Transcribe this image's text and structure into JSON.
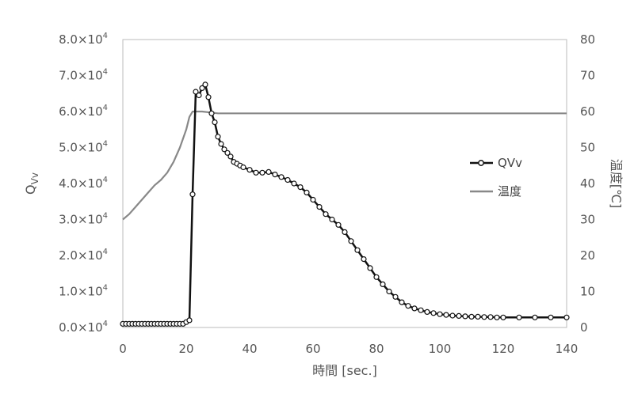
{
  "chart_data": {
    "type": "line",
    "xlabel": "時間 [sec.]",
    "ylabel_left": "Q",
    "ylabel_left_sub": "Vv",
    "ylabel_right": "温度[℃]",
    "xlim": [
      0,
      140
    ],
    "ylim_left": [
      0,
      80000
    ],
    "ylim_right": [
      0,
      80
    ],
    "grid": false,
    "legend_placement": "right",
    "x_ticks": [
      "0",
      "20",
      "40",
      "60",
      "80",
      "100",
      "120",
      "140"
    ],
    "y_left_ticks": [
      {
        "mantissa": "0.0×10",
        "exp": "4"
      },
      {
        "mantissa": "1.0×10",
        "exp": "4"
      },
      {
        "mantissa": "2.0×10",
        "exp": "4"
      },
      {
        "mantissa": "3.0×10",
        "exp": "4"
      },
      {
        "mantissa": "4.0×10",
        "exp": "4"
      },
      {
        "mantissa": "5.0×10",
        "exp": "4"
      },
      {
        "mantissa": "6.0×10",
        "exp": "4"
      },
      {
        "mantissa": "7.0×10",
        "exp": "4"
      },
      {
        "mantissa": "8.0×10",
        "exp": "4"
      }
    ],
    "y_right_ticks": [
      "0",
      "10",
      "20",
      "30",
      "40",
      "50",
      "60",
      "70",
      "80"
    ],
    "series": [
      {
        "name": "QVv",
        "axis": "left",
        "color": "#111111",
        "marker": "circle",
        "points": [
          [
            0,
            1000
          ],
          [
            1,
            1000
          ],
          [
            2,
            1000
          ],
          [
            3,
            1000
          ],
          [
            4,
            1000
          ],
          [
            5,
            1000
          ],
          [
            6,
            1000
          ],
          [
            7,
            1000
          ],
          [
            8,
            1000
          ],
          [
            9,
            1000
          ],
          [
            10,
            1000
          ],
          [
            11,
            1000
          ],
          [
            12,
            1000
          ],
          [
            13,
            1000
          ],
          [
            14,
            1000
          ],
          [
            15,
            1000
          ],
          [
            16,
            1000
          ],
          [
            17,
            1000
          ],
          [
            18,
            1000
          ],
          [
            19,
            1000
          ],
          [
            20,
            1500
          ],
          [
            21,
            2000
          ],
          [
            22,
            37000
          ],
          [
            23,
            65500
          ],
          [
            24,
            64500
          ],
          [
            25,
            66500
          ],
          [
            26,
            67500
          ],
          [
            27,
            64000
          ],
          [
            28,
            59500
          ],
          [
            29,
            57000
          ],
          [
            30,
            53000
          ],
          [
            31,
            51000
          ],
          [
            32,
            49500
          ],
          [
            33,
            48500
          ],
          [
            34,
            47500
          ],
          [
            35,
            46000
          ],
          [
            36,
            45500
          ],
          [
            37,
            45000
          ],
          [
            38,
            44500
          ],
          [
            40,
            43800
          ],
          [
            42,
            43000
          ],
          [
            44,
            43000
          ],
          [
            46,
            43200
          ],
          [
            48,
            42500
          ],
          [
            50,
            41800
          ],
          [
            52,
            41000
          ],
          [
            54,
            40000
          ],
          [
            56,
            39000
          ],
          [
            58,
            37500
          ],
          [
            60,
            35500
          ],
          [
            62,
            33500
          ],
          [
            64,
            31500
          ],
          [
            66,
            30000
          ],
          [
            68,
            28500
          ],
          [
            70,
            26500
          ],
          [
            72,
            24000
          ],
          [
            74,
            21500
          ],
          [
            76,
            19000
          ],
          [
            78,
            16500
          ],
          [
            80,
            14000
          ],
          [
            82,
            12000
          ],
          [
            84,
            10000
          ],
          [
            86,
            8500
          ],
          [
            88,
            7000
          ],
          [
            90,
            6000
          ],
          [
            92,
            5300
          ],
          [
            94,
            4800
          ],
          [
            96,
            4300
          ],
          [
            98,
            4000
          ],
          [
            100,
            3700
          ],
          [
            102,
            3500
          ],
          [
            104,
            3300
          ],
          [
            106,
            3200
          ],
          [
            108,
            3100
          ],
          [
            110,
            3000
          ],
          [
            112,
            3000
          ],
          [
            114,
            2900
          ],
          [
            116,
            2900
          ],
          [
            118,
            2800
          ],
          [
            120,
            2800
          ],
          [
            125,
            2800
          ],
          [
            130,
            2800
          ],
          [
            135,
            2800
          ],
          [
            140,
            2800
          ]
        ]
      },
      {
        "name": "温度",
        "axis": "right",
        "color": "#888888",
        "marker": "none",
        "points": [
          [
            0,
            30
          ],
          [
            2,
            31.5
          ],
          [
            4,
            33.5
          ],
          [
            6,
            35.5
          ],
          [
            8,
            37.5
          ],
          [
            10,
            39.5
          ],
          [
            12,
            41
          ],
          [
            14,
            43
          ],
          [
            16,
            46
          ],
          [
            18,
            50
          ],
          [
            20,
            55
          ],
          [
            21,
            58.5
          ],
          [
            22,
            60
          ],
          [
            25,
            60
          ],
          [
            30,
            59.5
          ],
          [
            40,
            59.5
          ],
          [
            60,
            59.5
          ],
          [
            80,
            59.5
          ],
          [
            100,
            59.5
          ],
          [
            120,
            59.5
          ],
          [
            140,
            59.5
          ]
        ]
      }
    ]
  }
}
